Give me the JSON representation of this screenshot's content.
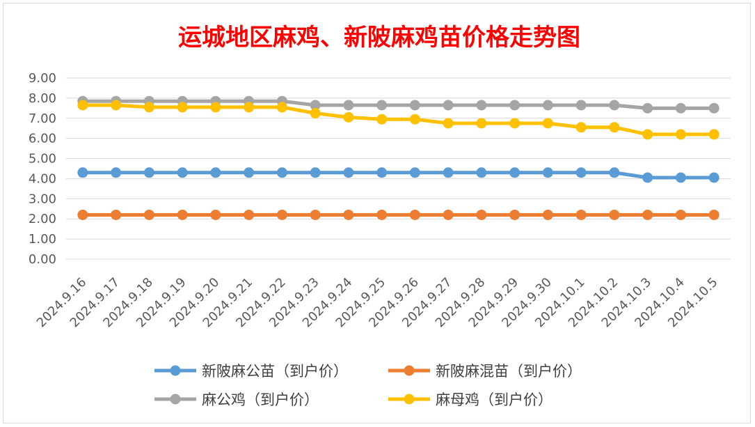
{
  "chart_data": {
    "type": "line",
    "title": "运城地区麻鸡、新陂麻鸡苗价格走势图",
    "xlabel": "",
    "ylabel": "",
    "ylim": [
      0,
      9
    ],
    "y_ticks": [
      "0.00",
      "1.00",
      "2.00",
      "3.00",
      "4.00",
      "5.00",
      "6.00",
      "7.00",
      "8.00",
      "9.00"
    ],
    "grid": true,
    "legend_position": "bottom",
    "categories": [
      "2024.9.16",
      "2024.9.17",
      "2024.9.18",
      "2024.9.19",
      "2024.9.20",
      "2024.9.21",
      "2024.9.22",
      "2024.9.23",
      "2024.9.24",
      "2024.9.25",
      "2024.9.26",
      "2024.9.27",
      "2024.9.28",
      "2024.9.29",
      "2024.9.30",
      "2024.10.1",
      "2024.10.2",
      "2024.10.3",
      "2024.10.4",
      "2024.10.5"
    ],
    "series": [
      {
        "name": "新陂麻公苗（到户价）",
        "color": "#5b9bd5",
        "values": [
          4.3,
          4.3,
          4.3,
          4.3,
          4.3,
          4.3,
          4.3,
          4.3,
          4.3,
          4.3,
          4.3,
          4.3,
          4.3,
          4.3,
          4.3,
          4.3,
          4.3,
          4.05,
          4.05,
          4.05
        ]
      },
      {
        "name": "新陂麻混苗（到户价）",
        "color": "#ed7d31",
        "values": [
          2.2,
          2.2,
          2.2,
          2.2,
          2.2,
          2.2,
          2.2,
          2.2,
          2.2,
          2.2,
          2.2,
          2.2,
          2.2,
          2.2,
          2.2,
          2.2,
          2.2,
          2.2,
          2.2,
          2.2
        ]
      },
      {
        "name": "麻公鸡（到户价）",
        "color": "#a5a5a5",
        "values": [
          7.85,
          7.85,
          7.85,
          7.85,
          7.85,
          7.85,
          7.85,
          7.65,
          7.65,
          7.65,
          7.65,
          7.65,
          7.65,
          7.65,
          7.65,
          7.65,
          7.65,
          7.5,
          7.5,
          7.5
        ]
      },
      {
        "name": "麻母鸡（到户价）",
        "color": "#ffc000",
        "values": [
          7.65,
          7.65,
          7.55,
          7.55,
          7.55,
          7.55,
          7.55,
          7.25,
          7.05,
          6.95,
          6.95,
          6.75,
          6.75,
          6.75,
          6.75,
          6.55,
          6.55,
          6.2,
          6.2,
          6.2
        ]
      }
    ]
  }
}
